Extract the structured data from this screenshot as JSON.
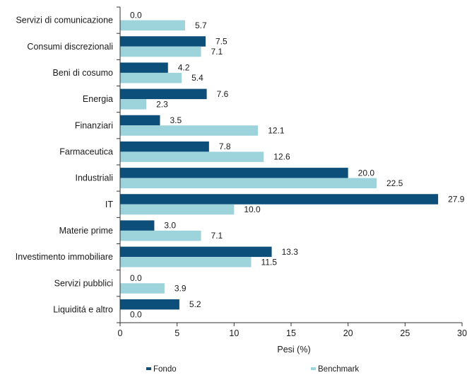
{
  "chart_data": {
    "type": "bar",
    "orientation": "horizontal",
    "categories": [
      "Servizi di comunicazione",
      "Consumi discrezionali",
      "Beni di cosumo",
      "Energia",
      "Finanziari",
      "Farmaceutica",
      "Industriali",
      "IT",
      "Materie prime",
      "Investimento immobiliare",
      "Servizi pubblici",
      "Liquiditá e altro"
    ],
    "series": [
      {
        "name": "Fondo",
        "color": "#0b4f7a",
        "values": [
          0.0,
          7.5,
          4.2,
          7.6,
          3.5,
          7.8,
          20.0,
          27.9,
          3.0,
          13.3,
          0.0,
          5.2
        ],
        "labels": [
          "0.0",
          "7.5",
          "4.2",
          "7.6",
          "3.5",
          "7.8",
          "20.0",
          "27.9",
          "3.0",
          "13.3",
          "0.0",
          "5.2"
        ]
      },
      {
        "name": "Benchmark",
        "color": "#9dd4dc",
        "values": [
          5.7,
          7.1,
          5.4,
          2.3,
          12.1,
          12.6,
          22.5,
          10.0,
          7.1,
          11.5,
          3.9,
          0.0
        ],
        "labels": [
          "5.7",
          "7.1",
          "5.4",
          "2.3",
          "12.1",
          "12.6",
          "22.5",
          "10.0",
          "7.1",
          "11.5",
          "3.9",
          "0.0"
        ]
      }
    ],
    "xlabel": "Pesi (%)",
    "xlim": [
      0,
      30
    ],
    "xticks": [
      0,
      5,
      10,
      15,
      20,
      25,
      30
    ],
    "xtick_labels": [
      "0",
      "5",
      "10",
      "15",
      "20",
      "25",
      "30"
    ],
    "grid": false,
    "legend_position": "bottom"
  }
}
